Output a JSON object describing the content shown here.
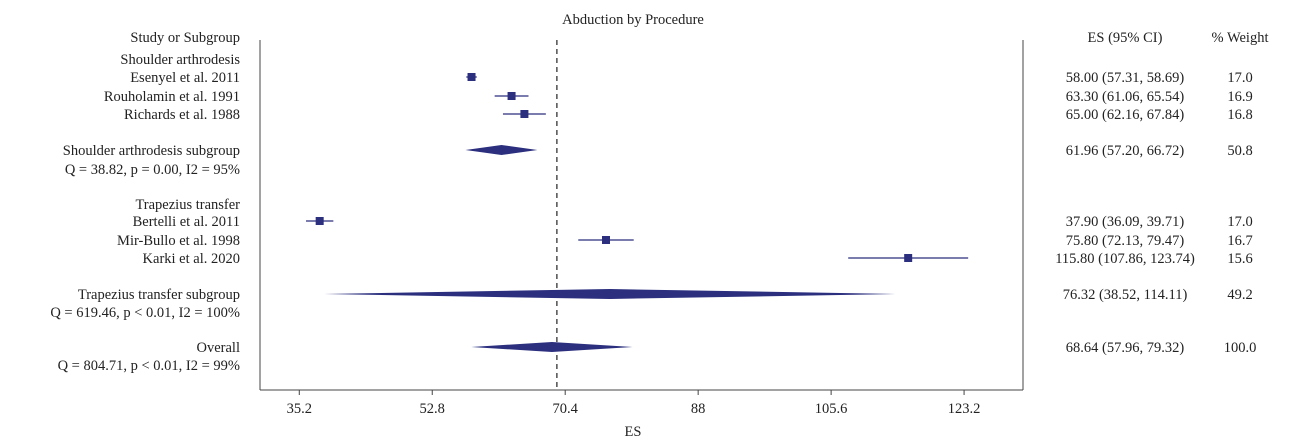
{
  "chart_data": {
    "type": "forest",
    "title": "Abduction by Procedure",
    "xlabel": "ES",
    "xlim": [
      30,
      131
    ],
    "x_ticks": [
      "35.2",
      "52.8",
      "70.4",
      "88",
      "105.6",
      "123.2"
    ],
    "x_tick_values": [
      35.2,
      52.8,
      70.4,
      88,
      105.6,
      123.2
    ],
    "reference_line": 69.3,
    "columns": {
      "study": "Study or Subgroup",
      "es": "ES (95% CI)",
      "weight": "% Weight"
    },
    "colors": {
      "marker": "#2b2f7e",
      "ci": "#2b2f7e",
      "diamond": "#2b2f7e",
      "text": "#222222"
    },
    "groups": [
      {
        "name": "Shoulder arthrodesis",
        "studies": [
          {
            "label": "Esenyel et al. 2011",
            "es": 58.0,
            "lo": 57.31,
            "hi": 58.69,
            "es_text": "58.00 (57.31, 58.69)",
            "weight": "17.0"
          },
          {
            "label": "Rouholamin et al. 1991",
            "es": 63.3,
            "lo": 61.06,
            "hi": 65.54,
            "es_text": "63.30 (61.06, 65.54)",
            "weight": "16.9"
          },
          {
            "label": "Richards et al. 1988",
            "es": 65.0,
            "lo": 62.16,
            "hi": 67.84,
            "es_text": "65.00 (62.16, 67.84)",
            "weight": "16.8"
          }
        ],
        "subgroup": {
          "label": "Shoulder arthrodesis subgroup",
          "stats": "Q = 38.82, p = 0.00, I2 = 95%",
          "es": 61.96,
          "lo": 57.2,
          "hi": 66.72,
          "es_text": "61.96 (57.20, 66.72)",
          "weight": "50.8"
        }
      },
      {
        "name": "Trapezius transfer",
        "studies": [
          {
            "label": "Bertelli et al. 2011",
            "es": 37.9,
            "lo": 36.09,
            "hi": 39.71,
            "es_text": "37.90 (36.09, 39.71)",
            "weight": "17.0"
          },
          {
            "label": "Mir-Bullo et al. 1998",
            "es": 75.8,
            "lo": 72.13,
            "hi": 79.47,
            "es_text": "75.80 (72.13, 79.47)",
            "weight": "16.7"
          },
          {
            "label": "Karki et al. 2020",
            "es": 115.8,
            "lo": 107.86,
            "hi": 123.74,
            "es_text": "115.80 (107.86, 123.74)",
            "weight": "15.6"
          }
        ],
        "subgroup": {
          "label": "Trapezius transfer subgroup",
          "stats": "Q = 619.46, p < 0.01, I2 = 100%",
          "es": 76.32,
          "lo": 38.52,
          "hi": 114.11,
          "es_text": "76.32 (38.52, 114.11)",
          "weight": "49.2"
        }
      }
    ],
    "overall": {
      "label": "Overall",
      "stats": "Q = 804.71, p < 0.01, I2 = 99%",
      "es": 68.64,
      "lo": 57.96,
      "hi": 79.32,
      "es_text": "68.64 (57.96, 79.32)",
      "weight": "100.0"
    }
  }
}
